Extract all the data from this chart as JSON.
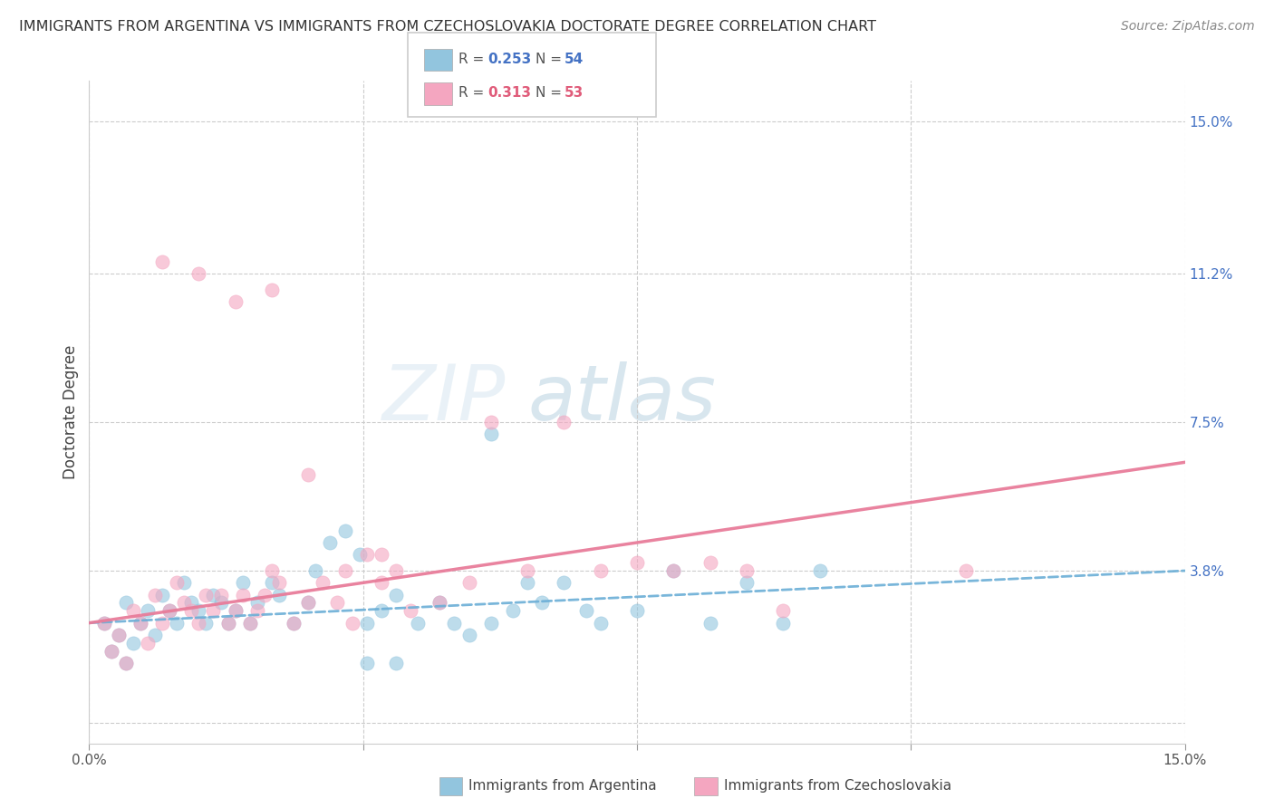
{
  "title": "IMMIGRANTS FROM ARGENTINA VS IMMIGRANTS FROM CZECHOSLOVAKIA DOCTORATE DEGREE CORRELATION CHART",
  "source": "Source: ZipAtlas.com",
  "ylabel": "Doctorate Degree",
  "y_ticks": [
    0.0,
    0.038,
    0.075,
    0.112,
    0.15
  ],
  "y_tick_labels_right": [
    "",
    "3.8%",
    "7.5%",
    "11.2%",
    "15.0%"
  ],
  "xmin": 0.0,
  "xmax": 0.15,
  "ymin": -0.005,
  "ymax": 0.16,
  "legend_r1": "0.253",
  "legend_n1": "54",
  "legend_r2": "0.313",
  "legend_n2": "53",
  "color_argentina": "#92c5de",
  "color_czechoslovakia": "#f4a6c0",
  "color_line_argentina": "#6baed6",
  "color_line_czechoslovakia": "#e87c9a",
  "watermark_zip": "ZIP",
  "watermark_atlas": "atlas",
  "title_fontsize": 11.5,
  "source_fontsize": 10,
  "tick_fontsize": 11,
  "argentina_x": [
    0.002,
    0.003,
    0.004,
    0.005,
    0.005,
    0.006,
    0.007,
    0.008,
    0.009,
    0.01,
    0.011,
    0.012,
    0.013,
    0.014,
    0.015,
    0.016,
    0.017,
    0.018,
    0.019,
    0.02,
    0.021,
    0.022,
    0.023,
    0.025,
    0.026,
    0.028,
    0.03,
    0.031,
    0.033,
    0.035,
    0.037,
    0.038,
    0.04,
    0.042,
    0.045,
    0.048,
    0.05,
    0.052,
    0.055,
    0.058,
    0.062,
    0.065,
    0.068,
    0.07,
    0.075,
    0.08,
    0.085,
    0.09,
    0.095,
    0.1,
    0.055,
    0.06,
    0.038,
    0.042
  ],
  "argentina_y": [
    0.025,
    0.018,
    0.022,
    0.03,
    0.015,
    0.02,
    0.025,
    0.028,
    0.022,
    0.032,
    0.028,
    0.025,
    0.035,
    0.03,
    0.028,
    0.025,
    0.032,
    0.03,
    0.025,
    0.028,
    0.035,
    0.025,
    0.03,
    0.035,
    0.032,
    0.025,
    0.03,
    0.038,
    0.045,
    0.048,
    0.042,
    0.025,
    0.028,
    0.032,
    0.025,
    0.03,
    0.025,
    0.022,
    0.025,
    0.028,
    0.03,
    0.035,
    0.028,
    0.025,
    0.028,
    0.038,
    0.025,
    0.035,
    0.025,
    0.038,
    0.072,
    0.035,
    0.015,
    0.015
  ],
  "czechoslovakia_x": [
    0.002,
    0.003,
    0.004,
    0.005,
    0.006,
    0.007,
    0.008,
    0.009,
    0.01,
    0.011,
    0.012,
    0.013,
    0.014,
    0.015,
    0.016,
    0.017,
    0.018,
    0.019,
    0.02,
    0.021,
    0.022,
    0.023,
    0.024,
    0.025,
    0.026,
    0.028,
    0.03,
    0.032,
    0.034,
    0.036,
    0.038,
    0.04,
    0.042,
    0.044,
    0.048,
    0.052,
    0.055,
    0.06,
    0.065,
    0.07,
    0.075,
    0.08,
    0.085,
    0.09,
    0.095,
    0.01,
    0.015,
    0.02,
    0.025,
    0.03,
    0.035,
    0.04,
    0.12
  ],
  "czechoslovakia_y": [
    0.025,
    0.018,
    0.022,
    0.015,
    0.028,
    0.025,
    0.02,
    0.032,
    0.025,
    0.028,
    0.035,
    0.03,
    0.028,
    0.025,
    0.032,
    0.028,
    0.032,
    0.025,
    0.028,
    0.032,
    0.025,
    0.028,
    0.032,
    0.038,
    0.035,
    0.025,
    0.03,
    0.035,
    0.03,
    0.025,
    0.042,
    0.035,
    0.038,
    0.028,
    0.03,
    0.035,
    0.075,
    0.038,
    0.075,
    0.038,
    0.04,
    0.038,
    0.04,
    0.038,
    0.028,
    0.115,
    0.112,
    0.105,
    0.108,
    0.062,
    0.038,
    0.042,
    0.038
  ]
}
